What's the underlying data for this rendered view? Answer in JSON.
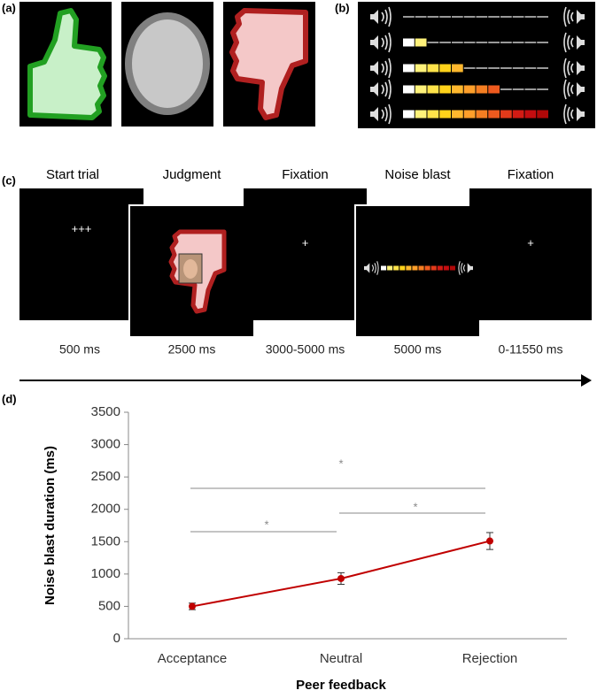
{
  "panels": {
    "a": "(a)",
    "b": "(b)",
    "c": "(c)",
    "d": "(d)"
  },
  "timeline": [
    {
      "title": "Start trial",
      "content": "+++",
      "duration": "500 ms"
    },
    {
      "title": "Judgment",
      "duration": "2500 ms"
    },
    {
      "title": "Fixation",
      "content": "+",
      "duration": "3000-5000 ms"
    },
    {
      "title": "Noise blast",
      "duration": "5000 ms"
    },
    {
      "title": "Fixation",
      "content": "+",
      "duration": "0-11550  ms"
    }
  ],
  "chart_data": {
    "type": "line",
    "xlabel": "Peer feedback",
    "ylabel": "Noise blast duration (ms)",
    "categories": [
      "Acceptance",
      "Neutral",
      "Rejection"
    ],
    "values": [
      500,
      930,
      1510
    ],
    "errors": [
      50,
      90,
      130
    ],
    "color": "#c00000",
    "ylim": [
      0,
      3500
    ],
    "yticks": [
      0,
      500,
      1000,
      1500,
      2000,
      2500,
      3000,
      3500
    ],
    "annotations": [
      "*",
      "*",
      "*"
    ]
  }
}
